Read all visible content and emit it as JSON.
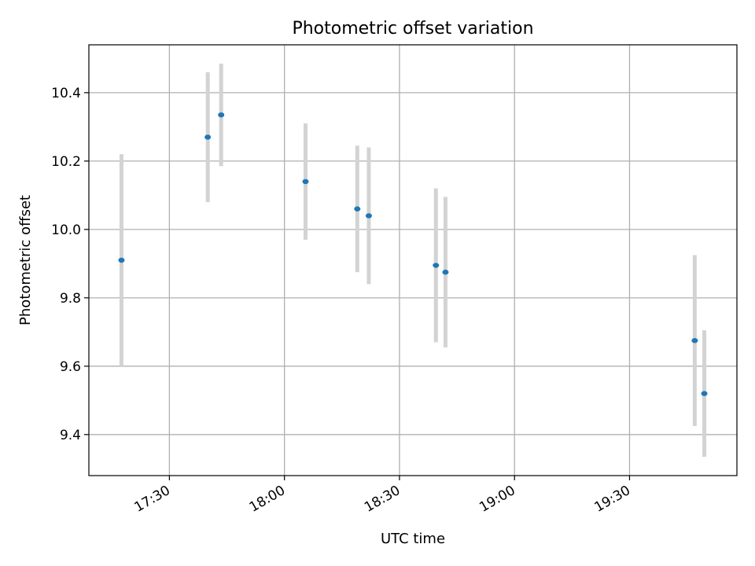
{
  "chart_data": {
    "type": "scatter",
    "title": "Photometric offset variation",
    "xlabel": "UTC time",
    "ylabel": "Photometric offset",
    "x_axis_type": "time",
    "xlim": [
      "17:09",
      "19:58"
    ],
    "ylim": [
      9.28,
      10.54
    ],
    "x_ticks": [
      "17:30",
      "18:00",
      "18:30",
      "19:00",
      "19:30"
    ],
    "y_ticks": [
      9.4,
      9.6,
      9.8,
      10.0,
      10.2,
      10.4
    ],
    "y_tick_labels": [
      "9.4",
      "9.6",
      "9.8",
      "10.0",
      "10.2",
      "10.4"
    ],
    "grid": true,
    "point_color": "#1f77b4",
    "errorbar_color": "#d3d3d3",
    "series": [
      {
        "points": [
          {
            "time": "17:17:30",
            "y": 9.91,
            "err": 0.31
          },
          {
            "time": "17:40:00",
            "y": 10.27,
            "err": 0.19
          },
          {
            "time": "17:43:30",
            "y": 10.335,
            "err": 0.15
          },
          {
            "time": "18:05:30",
            "y": 10.14,
            "err": 0.17
          },
          {
            "time": "18:19:00",
            "y": 10.06,
            "err": 0.185
          },
          {
            "time": "18:22:00",
            "y": 10.04,
            "err": 0.2
          },
          {
            "time": "18:39:30",
            "y": 9.895,
            "err": 0.225
          },
          {
            "time": "18:42:00",
            "y": 9.875,
            "err": 0.22
          },
          {
            "time": "19:47:00",
            "y": 9.675,
            "err": 0.25
          },
          {
            "time": "19:49:30",
            "y": 9.52,
            "err": 0.185
          }
        ]
      }
    ]
  }
}
